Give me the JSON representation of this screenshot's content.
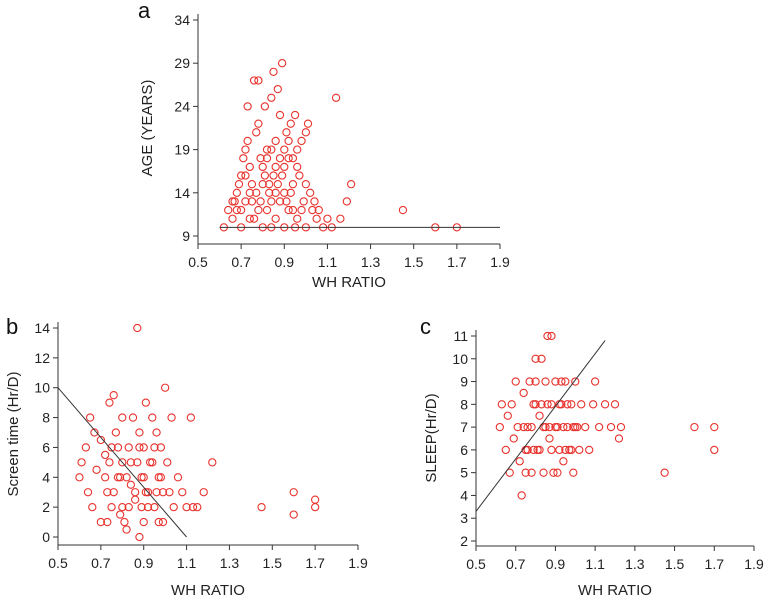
{
  "chart_data": [
    {
      "panel": "a",
      "type": "scatter",
      "title": "",
      "xlabel": "WH RATIO",
      "ylabel": "AGE (YEARS)",
      "xlim": [
        0.5,
        1.9
      ],
      "ylim": [
        9,
        34
      ],
      "xticks": [
        "0.5",
        "0.7",
        "0.9",
        "1.1",
        "1.3",
        "1.5",
        "1.7",
        "1.9"
      ],
      "yticks": [
        "9",
        "14",
        "19",
        "24",
        "29",
        "34"
      ],
      "fit_line": [
        [
          0.6,
          10
        ],
        [
          1.9,
          10
        ]
      ],
      "points": [
        [
          0.62,
          10
        ],
        [
          0.64,
          12
        ],
        [
          0.66,
          11
        ],
        [
          0.67,
          13
        ],
        [
          0.68,
          14
        ],
        [
          0.69,
          15
        ],
        [
          0.7,
          10
        ],
        [
          0.7,
          12
        ],
        [
          0.71,
          18
        ],
        [
          0.72,
          19
        ],
        [
          0.72,
          16
        ],
        [
          0.73,
          24
        ],
        [
          0.73,
          20
        ],
        [
          0.74,
          17
        ],
        [
          0.74,
          11
        ],
        [
          0.75,
          13
        ],
        [
          0.76,
          27
        ],
        [
          0.77,
          21
        ],
        [
          0.78,
          27
        ],
        [
          0.78,
          22
        ],
        [
          0.79,
          18
        ],
        [
          0.8,
          15
        ],
        [
          0.8,
          10
        ],
        [
          0.81,
          24
        ],
        [
          0.82,
          19
        ],
        [
          0.82,
          12
        ],
        [
          0.83,
          14
        ],
        [
          0.84,
          25
        ],
        [
          0.85,
          28
        ],
        [
          0.85,
          16
        ],
        [
          0.86,
          20
        ],
        [
          0.86,
          11
        ],
        [
          0.87,
          26
        ],
        [
          0.88,
          23
        ],
        [
          0.88,
          13
        ],
        [
          0.89,
          29
        ],
        [
          0.9,
          17
        ],
        [
          0.9,
          14
        ],
        [
          0.91,
          21
        ],
        [
          0.92,
          18
        ],
        [
          0.92,
          12
        ],
        [
          0.93,
          22
        ],
        [
          0.94,
          15
        ],
        [
          0.95,
          23
        ],
        [
          0.95,
          10
        ],
        [
          0.96,
          19
        ],
        [
          0.97,
          16
        ],
        [
          0.98,
          20
        ],
        [
          0.99,
          13
        ],
        [
          1.0,
          21
        ],
        [
          1.01,
          22
        ],
        [
          1.02,
          14
        ],
        [
          1.03,
          12
        ],
        [
          1.05,
          11
        ],
        [
          1.08,
          10
        ],
        [
          1.1,
          11
        ],
        [
          1.12,
          10
        ],
        [
          1.14,
          25
        ],
        [
          1.16,
          11
        ],
        [
          1.19,
          13
        ],
        [
          1.21,
          15
        ],
        [
          1.45,
          12
        ],
        [
          1.6,
          10
        ],
        [
          1.7,
          10
        ],
        [
          0.75,
          15
        ],
        [
          0.77,
          14
        ],
        [
          0.79,
          13
        ],
        [
          0.81,
          16
        ],
        [
          0.83,
          15
        ],
        [
          0.84,
          13
        ],
        [
          0.86,
          14
        ],
        [
          0.87,
          15
        ],
        [
          0.89,
          16
        ],
        [
          0.91,
          13
        ],
        [
          0.93,
          14
        ],
        [
          0.94,
          12
        ],
        [
          0.96,
          11
        ],
        [
          0.98,
          12
        ],
        [
          0.76,
          11
        ],
        [
          0.78,
          12
        ],
        [
          0.8,
          17
        ],
        [
          0.82,
          18
        ],
        [
          0.84,
          19
        ],
        [
          0.86,
          17
        ],
        [
          0.88,
          18
        ],
        [
          0.9,
          19
        ],
        [
          0.92,
          20
        ],
        [
          0.94,
          18
        ],
        [
          0.96,
          17
        ],
        [
          1.0,
          15
        ],
        [
          1.04,
          13
        ],
        [
          0.72,
          13
        ],
        [
          0.74,
          14
        ],
        [
          0.7,
          16
        ],
        [
          0.68,
          12
        ],
        [
          0.66,
          13
        ],
        [
          1.06,
          12
        ],
        [
          1.0,
          10
        ],
        [
          0.84,
          10
        ],
        [
          0.9,
          10
        ]
      ]
    },
    {
      "panel": "b",
      "type": "scatter",
      "title": "",
      "xlabel": "WH RATIO",
      "ylabel": "Screen time (Hr/D)",
      "xlim": [
        0.5,
        1.9
      ],
      "ylim": [
        0,
        14
      ],
      "xticks": [
        "0.5",
        "0.7",
        "0.9",
        "1.1",
        "1.3",
        "1.5",
        "1.7",
        "1.9"
      ],
      "yticks": [
        "0",
        "2",
        "4",
        "6",
        "8",
        "10",
        "12",
        "14"
      ],
      "fit_line": [
        [
          0.5,
          10
        ],
        [
          1.1,
          0
        ]
      ],
      "points": [
        [
          0.6,
          4
        ],
        [
          0.61,
          5
        ],
        [
          0.63,
          6
        ],
        [
          0.64,
          3
        ],
        [
          0.65,
          8
        ],
        [
          0.66,
          2
        ],
        [
          0.67,
          7
        ],
        [
          0.68,
          4.5
        ],
        [
          0.7,
          6.5
        ],
        [
          0.7,
          1
        ],
        [
          0.72,
          5.5
        ],
        [
          0.73,
          3
        ],
        [
          0.74,
          9
        ],
        [
          0.75,
          2
        ],
        [
          0.76,
          9.5
        ],
        [
          0.77,
          7
        ],
        [
          0.78,
          4
        ],
        [
          0.79,
          1.5
        ],
        [
          0.8,
          8
        ],
        [
          0.8,
          5
        ],
        [
          0.82,
          0.5
        ],
        [
          0.83,
          6
        ],
        [
          0.84,
          3.5
        ],
        [
          0.85,
          8
        ],
        [
          0.86,
          2.5
        ],
        [
          0.87,
          14
        ],
        [
          0.88,
          7
        ],
        [
          0.88,
          0
        ],
        [
          0.89,
          4
        ],
        [
          0.9,
          6
        ],
        [
          0.9,
          1
        ],
        [
          0.91,
          9
        ],
        [
          0.92,
          3
        ],
        [
          0.93,
          5
        ],
        [
          0.94,
          8
        ],
        [
          0.95,
          2
        ],
        [
          0.96,
          7
        ],
        [
          0.97,
          4
        ],
        [
          0.98,
          6
        ],
        [
          0.99,
          1
        ],
        [
          1.0,
          10
        ],
        [
          1.01,
          5
        ],
        [
          1.02,
          3
        ],
        [
          1.03,
          8
        ],
        [
          1.04,
          2
        ],
        [
          1.06,
          4
        ],
        [
          1.08,
          3
        ],
        [
          1.1,
          2
        ],
        [
          1.12,
          8
        ],
        [
          1.13,
          2
        ],
        [
          1.15,
          2
        ],
        [
          1.18,
          3
        ],
        [
          1.22,
          5
        ],
        [
          1.45,
          2
        ],
        [
          1.6,
          3
        ],
        [
          1.6,
          1.5
        ],
        [
          1.7,
          2.5
        ],
        [
          1.7,
          2
        ],
        [
          0.72,
          4
        ],
        [
          0.74,
          5
        ],
        [
          0.76,
          3
        ],
        [
          0.78,
          6
        ],
        [
          0.8,
          2
        ],
        [
          0.82,
          4
        ],
        [
          0.84,
          5
        ],
        [
          0.86,
          3
        ],
        [
          0.88,
          6
        ],
        [
          0.9,
          4
        ],
        [
          0.92,
          2
        ],
        [
          0.94,
          5
        ],
        [
          0.96,
          3
        ],
        [
          0.98,
          4
        ],
        [
          0.75,
          6
        ],
        [
          0.79,
          4
        ],
        [
          0.83,
          2
        ],
        [
          0.87,
          5
        ],
        [
          0.91,
          3
        ],
        [
          0.95,
          6
        ],
        [
          0.99,
          3
        ],
        [
          0.73,
          1
        ],
        [
          0.81,
          1
        ],
        [
          0.89,
          2
        ],
        [
          0.97,
          1
        ]
      ]
    },
    {
      "panel": "c",
      "type": "scatter",
      "title": "",
      "xlabel": "WH RATIO",
      "ylabel": "SLEEP(Hr/D)",
      "xlim": [
        0.5,
        1.9
      ],
      "ylim": [
        2,
        11
      ],
      "xticks": [
        "0.5",
        "0.7",
        "0.9",
        "1.1",
        "1.3",
        "1.5",
        "1.7",
        "1.9"
      ],
      "yticks": [
        "2",
        "3",
        "4",
        "5",
        "6",
        "7",
        "8",
        "9",
        "10",
        "11"
      ],
      "fit_line": [
        [
          0.5,
          3.3
        ],
        [
          1.15,
          10.8
        ]
      ],
      "points": [
        [
          0.62,
          7
        ],
        [
          0.63,
          8
        ],
        [
          0.65,
          6
        ],
        [
          0.66,
          7.5
        ],
        [
          0.67,
          5
        ],
        [
          0.68,
          8
        ],
        [
          0.69,
          6.5
        ],
        [
          0.7,
          9
        ],
        [
          0.71,
          7
        ],
        [
          0.72,
          5.5
        ],
        [
          0.73,
          4
        ],
        [
          0.74,
          8.5
        ],
        [
          0.75,
          6
        ],
        [
          0.76,
          7
        ],
        [
          0.77,
          9
        ],
        [
          0.78,
          5
        ],
        [
          0.79,
          8
        ],
        [
          0.8,
          10
        ],
        [
          0.81,
          6
        ],
        [
          0.82,
          7.5
        ],
        [
          0.83,
          10
        ],
        [
          0.84,
          5
        ],
        [
          0.85,
          9
        ],
        [
          0.86,
          11
        ],
        [
          0.87,
          6.5
        ],
        [
          0.88,
          11
        ],
        [
          0.88,
          8
        ],
        [
          0.89,
          5
        ],
        [
          0.9,
          9
        ],
        [
          0.91,
          7
        ],
        [
          0.92,
          6
        ],
        [
          0.93,
          8
        ],
        [
          0.94,
          5.5
        ],
        [
          0.95,
          9
        ],
        [
          0.96,
          7
        ],
        [
          0.97,
          6
        ],
        [
          0.98,
          8
        ],
        [
          0.99,
          5
        ],
        [
          1.0,
          9
        ],
        [
          1.01,
          7
        ],
        [
          1.02,
          6
        ],
        [
          1.03,
          8
        ],
        [
          1.05,
          7
        ],
        [
          1.07,
          6
        ],
        [
          1.09,
          8
        ],
        [
          1.1,
          9
        ],
        [
          1.12,
          7
        ],
        [
          1.15,
          8
        ],
        [
          1.18,
          7
        ],
        [
          1.2,
          8
        ],
        [
          1.22,
          6.5
        ],
        [
          1.23,
          7
        ],
        [
          1.45,
          5
        ],
        [
          1.6,
          7
        ],
        [
          1.7,
          7
        ],
        [
          1.7,
          6
        ],
        [
          0.74,
          7
        ],
        [
          0.76,
          6
        ],
        [
          0.78,
          7
        ],
        [
          0.8,
          8
        ],
        [
          0.82,
          6
        ],
        [
          0.84,
          7
        ],
        [
          0.86,
          8
        ],
        [
          0.88,
          6
        ],
        [
          0.9,
          7
        ],
        [
          0.92,
          8
        ],
        [
          0.94,
          7
        ],
        [
          0.96,
          8
        ],
        [
          0.98,
          6
        ],
        [
          1.0,
          7
        ],
        [
          0.75,
          5
        ],
        [
          0.79,
          6
        ],
        [
          0.83,
          8
        ],
        [
          0.87,
          7
        ],
        [
          0.91,
          5
        ],
        [
          0.95,
          6
        ],
        [
          0.99,
          7
        ],
        [
          0.8,
          9
        ],
        [
          0.85,
          7
        ],
        [
          0.93,
          9
        ]
      ]
    }
  ]
}
